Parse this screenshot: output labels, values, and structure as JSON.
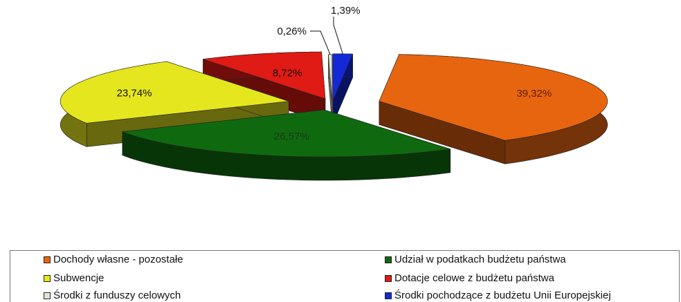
{
  "chart_data": {
    "type": "pie",
    "categories": [
      "Dochody własne - pozostałe",
      "Udział w podatkach budżetu państwa",
      "Subwencje",
      "Dotacje celowe z budżetu państwa",
      "Środki z funduszy celowych",
      "Środki pochodzące z budżetu Unii Europejskiej"
    ],
    "values": [
      39.32,
      26.57,
      23.74,
      8.72,
      0.26,
      1.39
    ],
    "value_labels": [
      "39,32%",
      "26,57%",
      "23,74%",
      "8,72%",
      "0,26%",
      "1,39%"
    ],
    "colors": [
      "#e8650f",
      "#0f6a0f",
      "#e6e61e",
      "#e01a14",
      "#e4e4d8",
      "#1428d8"
    ],
    "title": "",
    "legend_position": "bottom",
    "style": "3d-exploded"
  }
}
